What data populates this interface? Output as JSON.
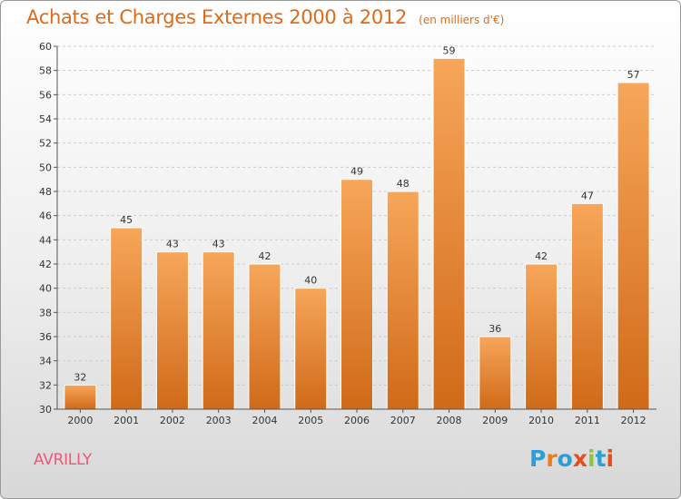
{
  "header": {
    "title": "Achats et Charges Externes 2000 à 2012",
    "subtitle": "(en milliers d'€)"
  },
  "footer": {
    "commune": "AVRILLY",
    "logo_letters": [
      "P",
      "r",
      "o",
      "x",
      "i",
      "t",
      "i"
    ],
    "logo_colors": [
      "#2a9fd8",
      "#e87e1c",
      "#2a9fd8",
      "#e84c1c",
      "#8cc63e",
      "#2a9fd8",
      "#e84c1c"
    ]
  },
  "colors": {
    "bar_light": "#f7a65a",
    "bar_dark": "#d06a18",
    "grid": "#cccccc",
    "axis": "#555555"
  },
  "chart_data": {
    "type": "bar",
    "categories": [
      "2000",
      "2001",
      "2002",
      "2003",
      "2004",
      "2005",
      "2006",
      "2007",
      "2008",
      "2009",
      "2010",
      "2011",
      "2012"
    ],
    "values": [
      32,
      45,
      43,
      43,
      42,
      40,
      49,
      48,
      59,
      36,
      42,
      47,
      57
    ],
    "ylim": [
      30,
      60
    ],
    "yticks": [
      30,
      32,
      34,
      36,
      38,
      40,
      42,
      44,
      46,
      48,
      50,
      52,
      54,
      56,
      58,
      60
    ],
    "grid": true,
    "xlabel": "",
    "ylabel": ""
  }
}
